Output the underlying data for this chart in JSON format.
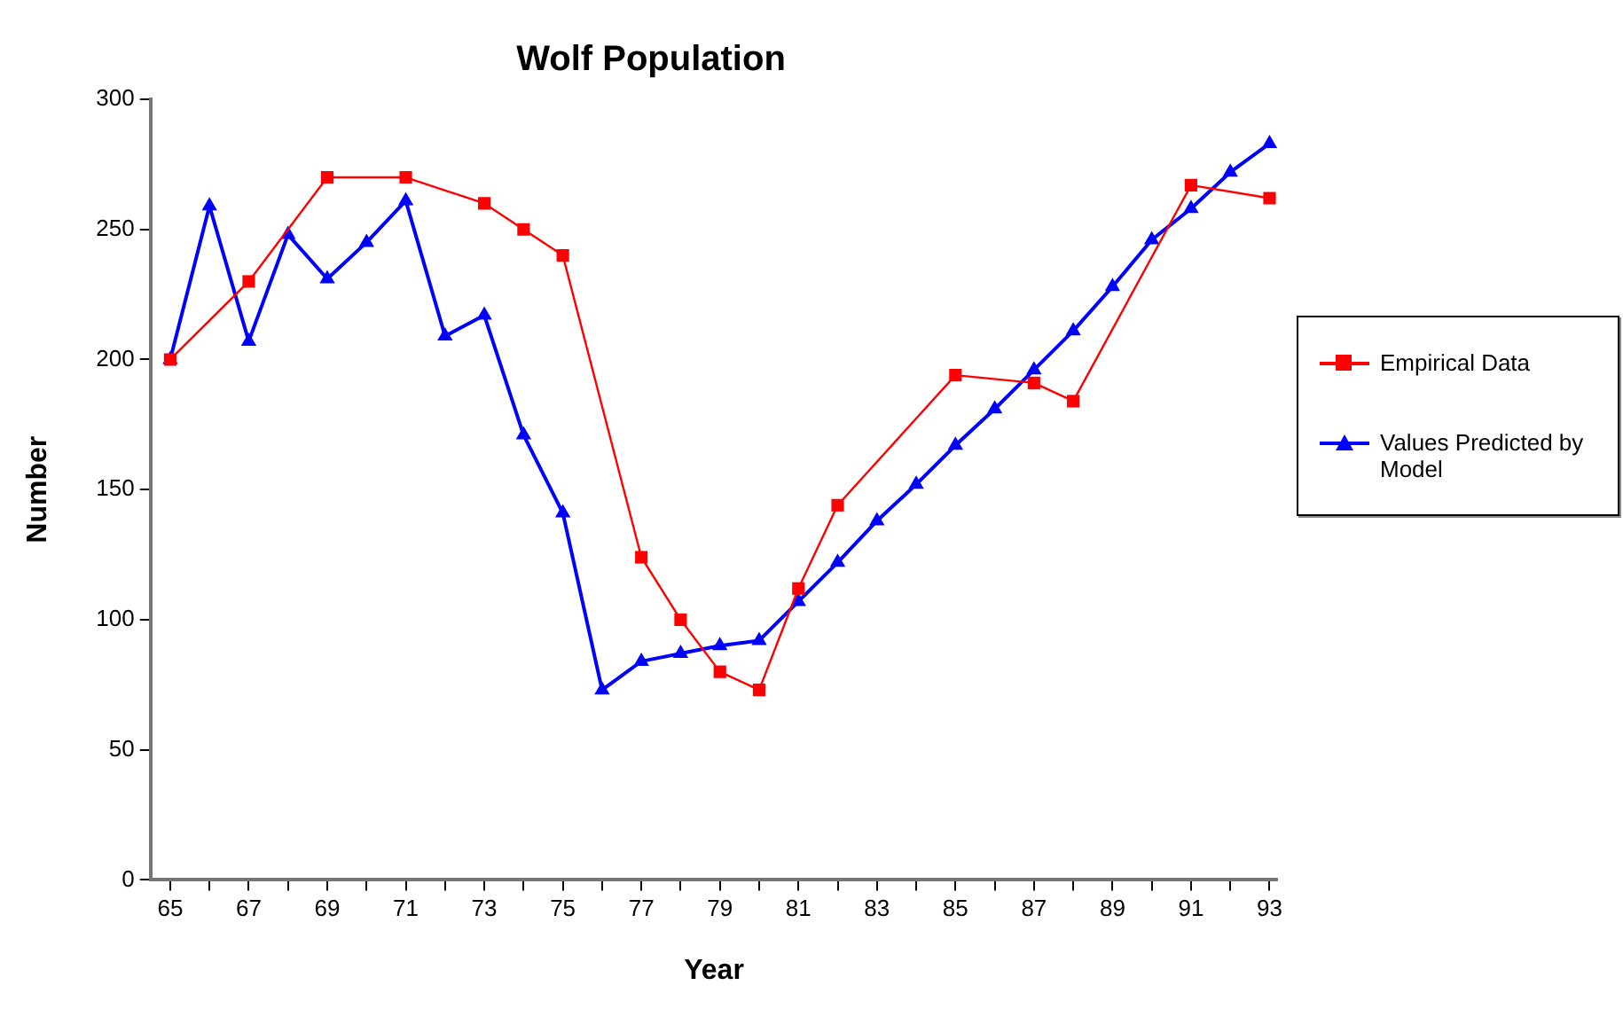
{
  "chart_data": {
    "type": "line",
    "title": "Wolf Population",
    "xlabel": "Year",
    "ylabel": "Number",
    "x": [
      65,
      66,
      67,
      68,
      69,
      70,
      71,
      72,
      73,
      74,
      75,
      76,
      77,
      78,
      79,
      80,
      81,
      82,
      83,
      84,
      85,
      86,
      87,
      88,
      89,
      90,
      91,
      92,
      93
    ],
    "series": [
      {
        "name": "Empirical Data",
        "color": "#ff0000",
        "marker": "square",
        "x": [
          65,
          67,
          69,
          71,
          73,
          74,
          75,
          77,
          78,
          79,
          80,
          81,
          82,
          85,
          87,
          88,
          91,
          93
        ],
        "values": [
          200,
          230,
          270,
          270,
          260,
          250,
          240,
          124,
          100,
          80,
          73,
          112,
          144,
          194,
          191,
          184,
          267,
          262
        ]
      },
      {
        "name": "Values Predicted by Model",
        "color": "#0000ff",
        "marker": "triangle",
        "values": [
          200,
          259,
          207,
          248,
          231,
          245,
          261,
          209,
          217,
          171,
          141,
          73,
          84,
          87,
          90,
          92,
          107,
          122,
          138,
          152,
          167,
          181,
          196,
          211,
          228,
          246,
          258,
          272,
          283
        ]
      }
    ],
    "xlim": [
      64.5,
      93.2
    ],
    "xticks": [
      65,
      {
        "value": 66,
        "label": null
      },
      67,
      {
        "value": 68,
        "label": null
      },
      69,
      {
        "value": 70,
        "label": null
      },
      71,
      {
        "value": 72,
        "label": null
      },
      73,
      {
        "value": 74,
        "label": null
      },
      75,
      {
        "value": 76,
        "label": null
      },
      77,
      {
        "value": 78,
        "label": null
      },
      79,
      {
        "value": 80,
        "label": null
      },
      81,
      {
        "value": 82,
        "label": null
      },
      83,
      {
        "value": 84,
        "label": null
      },
      85,
      {
        "value": 86,
        "label": null
      },
      87,
      {
        "value": 88,
        "label": null
      },
      89,
      {
        "value": 90,
        "label": null
      },
      91,
      {
        "value": 92,
        "label": null
      },
      93
    ],
    "ylim": [
      0,
      300
    ],
    "yticks": [
      0,
      50,
      100,
      150,
      200,
      250,
      300
    ],
    "grid": false,
    "legend": "right",
    "line_style": "solid"
  }
}
